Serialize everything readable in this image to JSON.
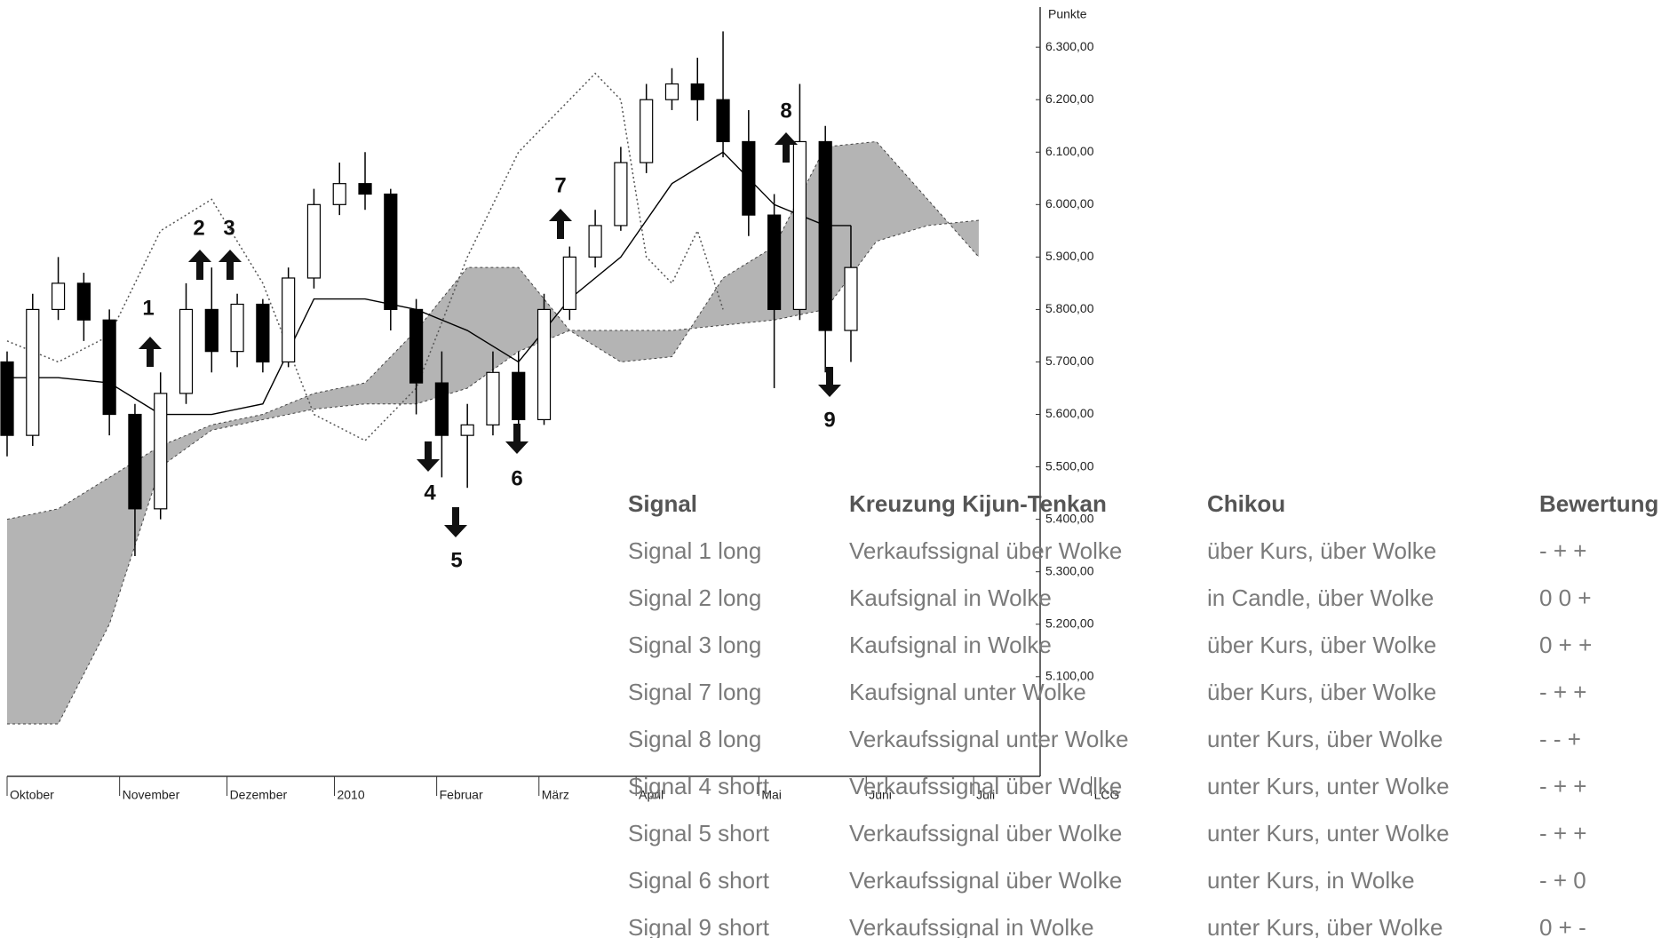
{
  "chart_data": {
    "type": "candlestick",
    "y_axis_label": "Punkte",
    "x": [
      0,
      5,
      10,
      15,
      20,
      25,
      30,
      35,
      40,
      45,
      50,
      55,
      60,
      65,
      70,
      75,
      80,
      85,
      90,
      95,
      100,
      105,
      110,
      115,
      120,
      125,
      130,
      135,
      140,
      145,
      150,
      155,
      160,
      165
    ],
    "open": [
      5700,
      5560,
      5800,
      5850,
      5780,
      5600,
      5420,
      5640,
      5800,
      5720,
      5810,
      5700,
      5860,
      6000,
      6040,
      6020,
      5800,
      5660,
      5560,
      5580,
      5680,
      5590,
      5800,
      5900,
      5960,
      6080,
      6200,
      6230,
      6200,
      6120,
      5980,
      5800,
      6120,
      5760
    ],
    "high": [
      5720,
      5830,
      5900,
      5870,
      5800,
      5620,
      5680,
      5850,
      5880,
      5830,
      5820,
      5880,
      6030,
      6080,
      6100,
      6030,
      5820,
      5720,
      5620,
      5720,
      5720,
      5830,
      5920,
      5990,
      6110,
      6230,
      6260,
      6280,
      6330,
      6180,
      6020,
      6230,
      6150,
      5960
    ],
    "low": [
      5520,
      5540,
      5780,
      5740,
      5560,
      5330,
      5400,
      5620,
      5680,
      5690,
      5680,
      5690,
      5840,
      5980,
      5990,
      5760,
      5600,
      5480,
      5460,
      5560,
      5560,
      5580,
      5780,
      5880,
      5950,
      6060,
      6180,
      6160,
      6090,
      5940,
      5650,
      5780,
      5680,
      5700
    ],
    "close": [
      5560,
      5800,
      5850,
      5780,
      5600,
      5420,
      5640,
      5800,
      5720,
      5810,
      5700,
      5860,
      6000,
      6040,
      6020,
      5800,
      5660,
      5560,
      5580,
      5680,
      5590,
      5800,
      5900,
      5960,
      6080,
      6200,
      6230,
      6200,
      6120,
      5980,
      5800,
      6120,
      5760,
      5880
    ],
    "cloud": {
      "color": "#b4b4b4",
      "x": [
        0,
        10,
        20,
        30,
        40,
        50,
        60,
        70,
        80,
        90,
        100,
        110,
        120,
        130,
        140,
        150,
        160,
        170,
        180,
        190
      ],
      "span_a": [
        5400,
        5420,
        5480,
        5540,
        5580,
        5600,
        5640,
        5660,
        5760,
        5880,
        5880,
        5760,
        5700,
        5710,
        5860,
        5920,
        6110,
        6120,
        6010,
        5900
      ],
      "span_b": [
        5010,
        5010,
        5200,
        5500,
        5570,
        5590,
        5610,
        5620,
        5620,
        5650,
        5720,
        5760,
        5760,
        5760,
        5770,
        5780,
        5800,
        5930,
        5960,
        5970
      ]
    },
    "lines": [
      {
        "color": "#000000",
        "style": "solid",
        "x": [
          0,
          10,
          20,
          30,
          40,
          50,
          60,
          70,
          80,
          90,
          100,
          110,
          120,
          130,
          140,
          150,
          160,
          165
        ],
        "values": [
          5670,
          5670,
          5660,
          5600,
          5600,
          5620,
          5820,
          5820,
          5800,
          5760,
          5700,
          5820,
          5900,
          6040,
          6100,
          6000,
          5960,
          5960
        ]
      },
      {
        "color": "#555555",
        "style": "dotted",
        "x": [
          0,
          10,
          20,
          30,
          40,
          50,
          60,
          70,
          80,
          90,
          100,
          110,
          115,
          120,
          125,
          130,
          135,
          140
        ],
        "values": [
          5740,
          5700,
          5750,
          5950,
          6010,
          5850,
          5600,
          5550,
          5650,
          5900,
          6100,
          6200,
          6250,
          6200,
          5900,
          5850,
          5950,
          5800
        ]
      }
    ],
    "annotations": [
      "1",
      "2",
      "3",
      "4",
      "5",
      "6",
      "7",
      "8",
      "9"
    ],
    "xlim": [
      0,
      202
    ],
    "ylim": [
      4910,
      6390
    ],
    "xticks": [
      {
        "value": 0,
        "label": "Oktober"
      },
      {
        "value": 22,
        "label": "November"
      },
      {
        "value": 43,
        "label": "Dezember"
      },
      {
        "value": 64,
        "label": "2010"
      },
      {
        "value": 84,
        "label": "Februar"
      },
      {
        "value": 104,
        "label": "März"
      },
      {
        "value": 123,
        "label": "April"
      },
      {
        "value": 147,
        "label": "Mai"
      },
      {
        "value": 168,
        "label": "Juni"
      },
      {
        "value": 189,
        "label": "Juli"
      },
      {
        "value": 212,
        "label": "LCG"
      }
    ],
    "yticks": [
      {
        "value": 5100,
        "label": "5.100,00"
      },
      {
        "value": 5200,
        "label": "5.200,00"
      },
      {
        "value": 5300,
        "label": "5.300,00"
      },
      {
        "value": 5400,
        "label": "5.400,00"
      },
      {
        "value": 5500,
        "label": "5.500,00"
      },
      {
        "value": 5600,
        "label": "5.600,00"
      },
      {
        "value": 5700,
        "label": "5.700,00"
      },
      {
        "value": 5800,
        "label": "5.800,00"
      },
      {
        "value": 5900,
        "label": "5.900,00"
      },
      {
        "value": 6000,
        "label": "6.000,00"
      },
      {
        "value": 6100,
        "label": "6.100,00"
      },
      {
        "value": 6200,
        "label": "6.200,00"
      },
      {
        "value": 6300,
        "label": "6.300,00"
      }
    ]
  },
  "table": {
    "header": [
      "Signal",
      "Kreuzung Kijun-Tenkan",
      "Chikou",
      "Bewertung"
    ],
    "rows": [
      [
        "Signal 1 long",
        "Verkaufssignal über Wolke",
        "über Kurs, über Wolke",
        "- + +"
      ],
      [
        "Signal 2 long",
        "Kaufsignal in Wolke",
        "in Candle, über Wolke",
        "0 0 +"
      ],
      [
        "Signal 3 long",
        "Kaufsignal in Wolke",
        "über Kurs, über Wolke",
        "0 + +"
      ],
      [
        "Signal 7 long",
        "Kaufsignal unter Wolke",
        "über Kurs, über Wolke",
        "- + +"
      ],
      [
        "Signal 8 long",
        "Verkaufssignal unter Wolke",
        "unter Kurs, über Wolke",
        "- - +"
      ],
      [
        "Signal 4 short",
        "Verkaufssignal über Wolke",
        "unter Kurs, unter Wolke",
        "- + +"
      ],
      [
        "Signal 5 short",
        "Verkaufssignal über Wolke",
        "unter Kurs, unter Wolke",
        "- + +"
      ],
      [
        "Signal 6 short",
        "Verkaufssignal über Wolke",
        "unter Kurs, in Wolke",
        "- + 0"
      ],
      [
        "Signal 9 short",
        "Verkaufssignal in Wolke",
        "unter Kurs, über Wolke",
        "0 + -"
      ]
    ]
  }
}
